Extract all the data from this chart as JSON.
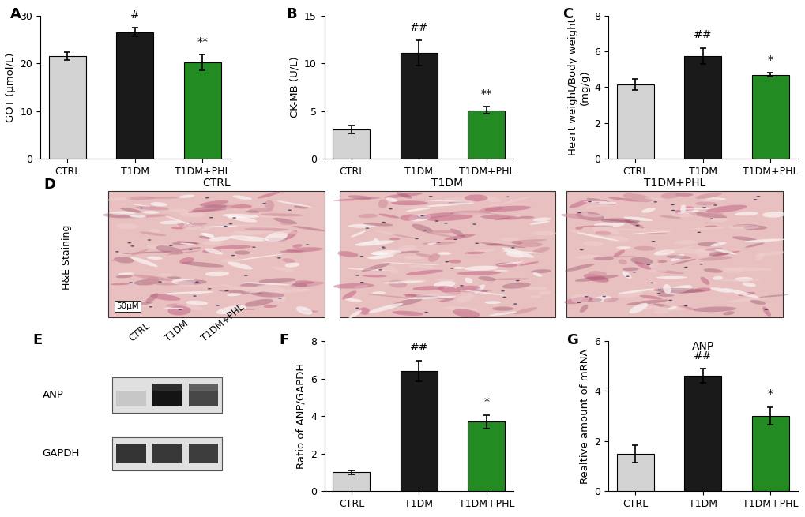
{
  "panel_A": {
    "title": "A",
    "ylabel": "GOT (μmol/L)",
    "categories": [
      "CTRL",
      "T1DM",
      "T1DM+PHL"
    ],
    "values": [
      21.5,
      26.5,
      20.2
    ],
    "errors": [
      0.8,
      0.9,
      1.6
    ],
    "colors": [
      "#d3d3d3",
      "#1a1a1a",
      "#228B22"
    ],
    "ylim": [
      0,
      30
    ],
    "yticks": [
      0,
      10,
      20,
      30
    ],
    "sig_labels": [
      "",
      "#",
      "**"
    ]
  },
  "panel_B": {
    "title": "B",
    "ylabel": "CK-MB (U/L)",
    "categories": [
      "CTRL",
      "T1DM",
      "T1DM+PHL"
    ],
    "values": [
      3.1,
      11.1,
      5.1
    ],
    "errors": [
      0.4,
      1.3,
      0.4
    ],
    "colors": [
      "#d3d3d3",
      "#1a1a1a",
      "#228B22"
    ],
    "ylim": [
      0,
      15
    ],
    "yticks": [
      0,
      5,
      10,
      15
    ],
    "sig_labels": [
      "",
      "##",
      "**"
    ]
  },
  "panel_C": {
    "title": "C",
    "ylabel": "Heart weight/Body weight\n(mg/g)",
    "categories": [
      "CTRL",
      "T1DM",
      "T1DM+PHL"
    ],
    "values": [
      4.15,
      5.75,
      4.7
    ],
    "errors": [
      0.3,
      0.45,
      0.12
    ],
    "colors": [
      "#d3d3d3",
      "#1a1a1a",
      "#228B22"
    ],
    "ylim": [
      0,
      8
    ],
    "yticks": [
      0,
      2,
      4,
      6,
      8
    ],
    "sig_labels": [
      "",
      "##",
      "*"
    ]
  },
  "panel_D": {
    "title": "D",
    "side_label": "H&E Staining",
    "sublabels": [
      "CTRL",
      "T1DM",
      "T1DM+PHL"
    ],
    "scale_bar": "50μM"
  },
  "panel_E": {
    "title": "E",
    "row_labels": [
      "ANP",
      "GAPDH"
    ],
    "lanes": [
      "CTRL",
      "T1DM",
      "T1DM+PHL"
    ],
    "anp_intensities": [
      0.22,
      0.92,
      0.72
    ],
    "gapdh_intensities": [
      0.8,
      0.78,
      0.76
    ]
  },
  "panel_F": {
    "title": "F",
    "ylabel": "Ratio of ANP/GAPDH",
    "categories": [
      "CTRL",
      "T1DM",
      "T1DM+PHL"
    ],
    "values": [
      1.0,
      6.4,
      3.7
    ],
    "errors": [
      0.12,
      0.55,
      0.35
    ],
    "colors": [
      "#d3d3d3",
      "#1a1a1a",
      "#228B22"
    ],
    "ylim": [
      0,
      8
    ],
    "yticks": [
      0,
      2,
      4,
      6,
      8
    ],
    "sig_labels": [
      "",
      "##",
      "*"
    ]
  },
  "panel_G": {
    "title": "G",
    "ylabel": "Realtive amount of mRNA",
    "top_label": "ANP",
    "categories": [
      "CTRL",
      "T1DM",
      "T1DM+PHL"
    ],
    "values": [
      1.5,
      4.6,
      3.0
    ],
    "errors": [
      0.35,
      0.28,
      0.35
    ],
    "colors": [
      "#d3d3d3",
      "#1a1a1a",
      "#228B22"
    ],
    "ylim": [
      0,
      6
    ],
    "yticks": [
      0,
      2,
      4,
      6
    ],
    "sig_labels": [
      "",
      "##",
      "*"
    ]
  },
  "bar_edge_color": "#000000",
  "bar_linewidth": 0.8,
  "capsize": 3,
  "elinewidth": 1.2,
  "tick_fontsize": 9,
  "label_fontsize": 9.5,
  "sig_fontsize": 10,
  "panel_label_fontsize": 13
}
